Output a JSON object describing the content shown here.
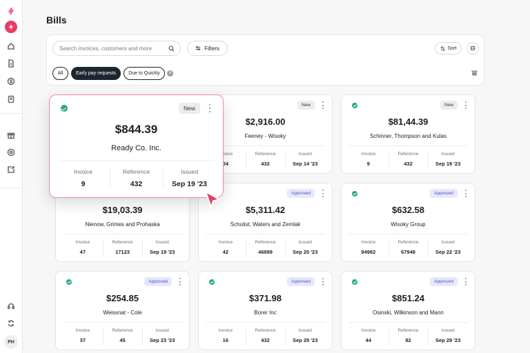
{
  "page": {
    "title": "Bills"
  },
  "sidebar": {
    "avatar_initials": "PH"
  },
  "toolbar": {
    "search_placeholder": "Search invoices, customers and more",
    "filters_label": "Filters",
    "sort_label": "Sort",
    "chips": [
      {
        "label": "All",
        "active": false
      },
      {
        "label": "Early pay requests",
        "active": true
      },
      {
        "label": "Due to Quickly",
        "active": false
      }
    ],
    "help_glyph": "?"
  },
  "columns": {
    "invoice": "Invoice",
    "reference": "Reference",
    "issued": "Issued"
  },
  "cards": [
    {
      "amount": "$844.39",
      "name": "Ready Co. Inc.",
      "status": "New",
      "invoice": "9",
      "reference": "432",
      "issued": "Sep 19 '23"
    },
    {
      "amount": "$2,916.00",
      "name": "Feeney - Wisoky",
      "status": "New",
      "invoice": "04",
      "reference": "432",
      "issued": "Sep 14 '23"
    },
    {
      "amount": "$81,44.39",
      "name": "Schinner, Thompson and Kulas",
      "status": "New",
      "invoice": "9",
      "reference": "432",
      "issued": "Sep 19 '23"
    },
    {
      "amount": "$19,03.39",
      "name": "Nienow, Grimes and Prohaska",
      "status": "",
      "invoice": "47",
      "reference": "17123",
      "issued": "Sep 19 '23"
    },
    {
      "amount": "$5,311.42",
      "name": "Schulist, Waters and Zemlak",
      "status": "Approved",
      "invoice": "42",
      "reference": "46889",
      "issued": "Sep 20 '23"
    },
    {
      "amount": "$632.58",
      "name": "Wisoky Group",
      "status": "Approved",
      "invoice": "94982",
      "reference": "67948",
      "issued": "Sep 22 '23"
    },
    {
      "amount": "$254.85",
      "name": "Weissnat - Cole",
      "status": "Approved",
      "invoice": "37",
      "reference": "45",
      "issued": "Sep 23 '23"
    },
    {
      "amount": "$371.98",
      "name": "Borer Inc",
      "status": "Approved",
      "invoice": "16",
      "reference": "432",
      "issued": "Sep 29 '23"
    },
    {
      "amount": "$851.24",
      "name": "Osinski, Wilkinson and Mann",
      "status": "Approved",
      "invoice": "44",
      "reference": "82",
      "issued": "Sep 29 '23"
    }
  ],
  "colors": {
    "brand": "#ec3b63",
    "success": "#2aa872",
    "approved_text": "#4b55c6",
    "approved_bg": "#e6e8fb",
    "focus_border": "#ef8a9e"
  },
  "icons": [
    "logo-icon",
    "plus-icon",
    "home-icon",
    "document-icon",
    "dollar-icon",
    "ledger-icon",
    "gift-icon",
    "settings-icon",
    "export-icon",
    "headset-icon",
    "refresh-icon",
    "search-icon",
    "filter-icon",
    "sort-icon",
    "view-toggle-icon",
    "archive-icon",
    "more-icon",
    "check-icon",
    "cursor-icon"
  ]
}
